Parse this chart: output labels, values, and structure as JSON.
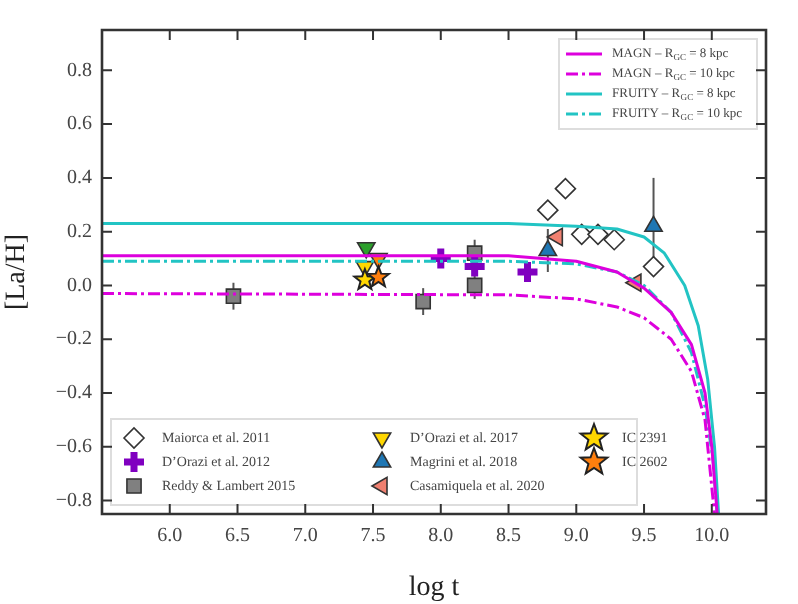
{
  "chart_data": {
    "type": "scatter",
    "xlabel": "log t",
    "ylabel": "[La/H]",
    "xlim": [
      5.5,
      10.4
    ],
    "xticks": [
      {
        "value": 6,
        "label": "6.0"
      },
      {
        "value": 6.5,
        "label": "6.5"
      },
      {
        "value": 7,
        "label": "7.0"
      },
      {
        "value": 7.5,
        "label": "7.5"
      },
      {
        "value": 8,
        "label": "8.0"
      },
      {
        "value": 8.5,
        "label": "8.5"
      },
      {
        "value": 9,
        "label": "9.0"
      },
      {
        "value": 9.5,
        "label": "9.5"
      },
      {
        "value": 10,
        "label": "10.0"
      }
    ],
    "ylim": [
      -0.85,
      0.95
    ],
    "yticks": [
      {
        "value": -0.8,
        "label": "−0.8"
      },
      {
        "value": -0.6,
        "label": "−0.6"
      },
      {
        "value": -0.4,
        "label": "−0.4"
      },
      {
        "value": -0.2,
        "label": "−0.2"
      },
      {
        "value": 0,
        "label": "0.0"
      },
      {
        "value": 0.2,
        "label": "0.2"
      },
      {
        "value": 0.4,
        "label": "0.4"
      },
      {
        "value": 0.6,
        "label": "0.6"
      },
      {
        "value": 0.8,
        "label": "0.8"
      }
    ],
    "grid": false,
    "legend": "top right",
    "series": [
      {
        "type": "line",
        "name": "MAGN – R$_{GC}$ = 8 kpc",
        "color": "#dd00dd",
        "line_style": "solid",
        "x": [
          5.5,
          8.5,
          9.0,
          9.3,
          9.5,
          9.7,
          9.85,
          9.95,
          10.0,
          10.04
        ],
        "values": [
          0.11,
          0.11,
          0.09,
          0.05,
          -0.01,
          -0.1,
          -0.22,
          -0.4,
          -0.6,
          -0.85
        ]
      },
      {
        "type": "line",
        "name": "MAGN – R$_{GC}$ = 10 kpc",
        "color": "#dd00dd",
        "line_style": "dashed",
        "x": [
          5.5,
          8.5,
          9.0,
          9.3,
          9.5,
          9.7,
          9.85,
          9.95,
          10.02
        ],
        "values": [
          -0.03,
          -0.035,
          -0.05,
          -0.08,
          -0.12,
          -0.2,
          -0.32,
          -0.5,
          -0.85
        ]
      },
      {
        "type": "line",
        "name": "FRUITY – R$_{GC}$ = 8 kpc",
        "color": "#22c4c4",
        "line_style": "solid",
        "x": [
          5.5,
          8.5,
          9.0,
          9.3,
          9.5,
          9.65,
          9.8,
          9.9,
          9.97,
          10.02,
          10.05
        ],
        "values": [
          0.23,
          0.23,
          0.22,
          0.21,
          0.18,
          0.12,
          0.0,
          -0.15,
          -0.35,
          -0.6,
          -0.85
        ]
      },
      {
        "type": "line",
        "name": "FRUITY – R$_{GC}$ = 10 kpc",
        "color": "#22c4c4",
        "line_style": "dashed",
        "x": [
          5.5,
          8.5,
          9.0,
          9.3,
          9.5,
          9.7,
          9.85,
          9.95,
          10.01,
          10.04
        ],
        "values": [
          0.09,
          0.09,
          0.08,
          0.05,
          0.0,
          -0.1,
          -0.25,
          -0.45,
          -0.65,
          -0.85
        ]
      },
      {
        "name": "Maiorca et al. 2011",
        "color": "#ffffff",
        "marker": "diamond",
        "x": [
          8.79,
          8.92,
          9.04,
          9.16,
          9.28,
          9.57
        ],
        "values": [
          0.28,
          0.36,
          0.19,
          0.19,
          0.17,
          0.07
        ]
      },
      {
        "name": "D’Orazi et al. 2012",
        "color": "#8000c0",
        "marker": "cross",
        "x": [
          8.0,
          8.25,
          8.64
        ],
        "values": [
          0.1,
          0.07,
          0.05
        ]
      },
      {
        "name": "Reddy & Lambert 2015",
        "color": "#808080",
        "marker": "square",
        "x": [
          6.47,
          7.87,
          8.25,
          8.25
        ],
        "values": [
          -0.04,
          -0.06,
          0.12,
          0.0
        ],
        "errors": [
          0.05,
          0.05,
          0.05,
          0.05
        ]
      },
      {
        "name": "D’Orazi et al. 2017",
        "color": "#ffd700",
        "colors": [
          "#2ca02c",
          "#ffd700",
          "#ff7f0e"
        ],
        "marker": "triangle_down",
        "x": [
          7.45,
          7.44,
          7.54
        ],
        "values": [
          0.14,
          0.07,
          0.1
        ]
      },
      {
        "name": "Magrini et al. 2018",
        "color": "#1f77b4",
        "marker": "triangle",
        "x": [
          8.79,
          9.57
        ],
        "values": [
          0.13,
          0.22
        ],
        "errors": [
          0.08,
          0.18
        ]
      },
      {
        "name": "Casamiquela et al. 2020",
        "color": "#f08070",
        "marker": "triangle_left",
        "x": [
          8.86,
          9.44
        ],
        "values": [
          0.18,
          0.01
        ]
      },
      {
        "name": "IC 2391",
        "color": "#ffd700",
        "marker": "star",
        "x": [
          7.44
        ],
        "values": [
          0.02
        ]
      },
      {
        "name": "IC 2602",
        "color": "#ff7f0e",
        "marker": "star",
        "x": [
          7.54
        ],
        "values": [
          0.03
        ]
      }
    ]
  }
}
